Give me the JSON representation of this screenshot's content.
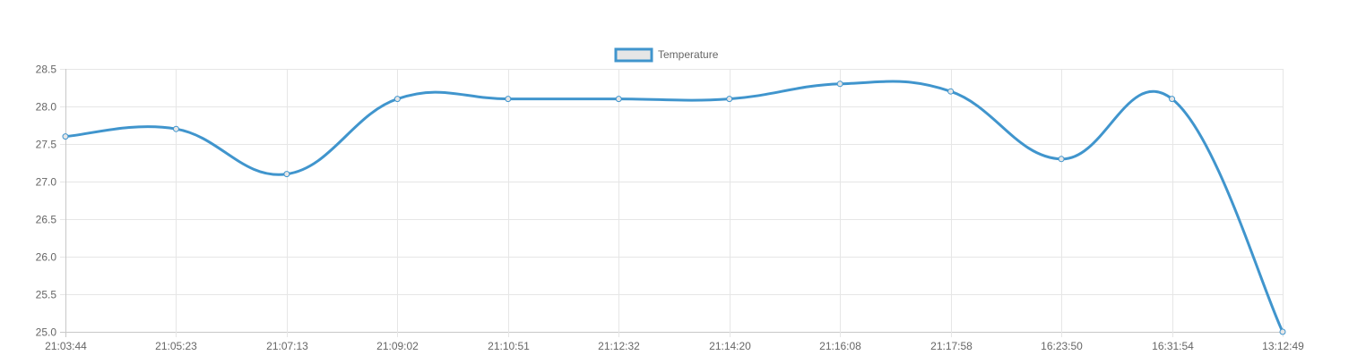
{
  "chart_data": {
    "type": "line",
    "title": "",
    "xlabel": "",
    "ylabel": "",
    "categories": [
      "21:03:44",
      "21:05:23",
      "21:07:13",
      "21:09:02",
      "21:10:51",
      "21:12:32",
      "21:14:20",
      "21:16:08",
      "21:17:58",
      "16:23:50",
      "16:31:54",
      "13:12:49"
    ],
    "series": [
      {
        "name": "Temperature",
        "values": [
          27.6,
          27.7,
          27.1,
          28.1,
          28.1,
          28.1,
          28.1,
          28.3,
          28.2,
          27.3,
          28.1,
          25.0
        ],
        "color": "#4095cd"
      }
    ],
    "ylim": [
      25.0,
      28.5
    ],
    "yticks": [
      "25.0",
      "25.5",
      "26.0",
      "26.5",
      "27.0",
      "27.5",
      "28.0",
      "28.5"
    ],
    "grid": true,
    "legend": "top-center",
    "smooth": true
  }
}
